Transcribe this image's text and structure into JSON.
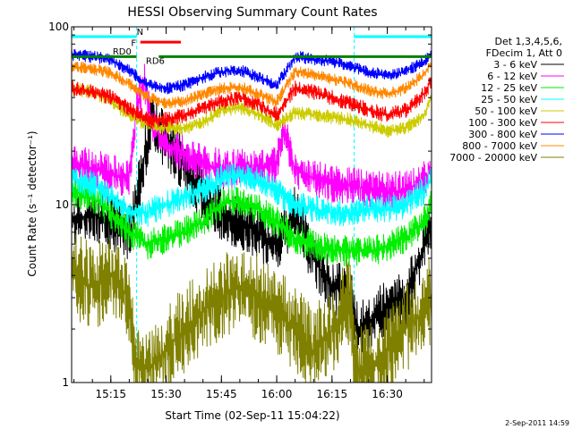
{
  "chart_data": {
    "type": "line",
    "title": "HESSI Observing Summary Count Rates",
    "xlabel": "Start Time (02-Sep-11 15:04:22)",
    "ylabel": "Count Rate (s⁻¹ detector⁻¹)",
    "y_scale": "log",
    "ylim": [
      1,
      100
    ],
    "xlim": [
      "15:04:22",
      "16:42:00"
    ],
    "x_tick_labels": [
      "15:15",
      "15:30",
      "15:45",
      "16:00",
      "16:15",
      "16:30"
    ],
    "y_tick_labels": [
      "1",
      "10",
      "100"
    ],
    "timestamp": "2-Sep-2011 14:59",
    "legend_header": [
      "Det 1,3,4,5,6,",
      "FDecim 1, Att 0"
    ],
    "annotations": [
      "RD0",
      "RD6",
      "N",
      "F"
    ],
    "night_bands": [
      [
        "15:04:22",
        "15:22:00"
      ],
      [
        "16:21:00",
        "16:42:00"
      ]
    ],
    "series": [
      {
        "name": "3 - 6 keV",
        "color": "#000000",
        "x": [
          "15:04",
          "15:10",
          "15:15",
          "15:20",
          "15:22",
          "15:26",
          "15:30",
          "15:35",
          "15:40",
          "15:45",
          "15:50",
          "15:55",
          "16:00",
          "16:05",
          "16:10",
          "16:15",
          "16:20",
          "16:22",
          "16:25",
          "16:30",
          "16:35",
          "16:40",
          "16:42"
        ],
        "values": [
          8,
          9,
          8,
          7,
          11,
          30,
          22,
          17,
          11,
          9,
          8,
          7,
          6,
          9,
          5,
          3.5,
          3,
          2,
          2.2,
          2.6,
          3,
          6,
          8
        ]
      },
      {
        "name": "6 - 12 keV",
        "color": "#ff00ff",
        "x": [
          "15:04",
          "15:10",
          "15:15",
          "15:20",
          "15:22",
          "15:24",
          "15:26",
          "15:30",
          "15:35",
          "15:40",
          "15:45",
          "15:50",
          "15:55",
          "16:00",
          "16:02",
          "16:05",
          "16:10",
          "16:15",
          "16:20",
          "16:25",
          "16:30",
          "16:35",
          "16:40",
          "16:42"
        ],
        "values": [
          17,
          16,
          15,
          14,
          35,
          50,
          30,
          22,
          19,
          17,
          16,
          16,
          16,
          17,
          26,
          16,
          14,
          13,
          13,
          12,
          12,
          12,
          14,
          16
        ]
      },
      {
        "name": "12 - 25 keV",
        "color": "#00ee00",
        "x": [
          "15:04",
          "15:10",
          "15:15",
          "15:20",
          "15:25",
          "15:30",
          "15:35",
          "15:40",
          "15:45",
          "15:50",
          "15:55",
          "16:00",
          "16:05",
          "16:10",
          "16:15",
          "16:20",
          "16:25",
          "16:30",
          "16:35",
          "16:40",
          "16:42"
        ],
        "values": [
          12,
          11,
          9,
          7,
          6,
          6.5,
          7,
          8,
          10,
          10.5,
          9.5,
          8,
          6.5,
          6,
          5.5,
          5.5,
          5.5,
          5.8,
          6.5,
          8,
          10
        ]
      },
      {
        "name": "25 - 50 keV",
        "color": "#00ffff",
        "x": [
          "15:04",
          "15:10",
          "15:15",
          "15:20",
          "15:25",
          "15:30",
          "15:35",
          "15:40",
          "15:45",
          "15:50",
          "15:55",
          "16:00",
          "16:05",
          "16:10",
          "16:15",
          "16:20",
          "16:25",
          "16:30",
          "16:35",
          "16:40",
          "16:42"
        ],
        "values": [
          14,
          13,
          11,
          9,
          9,
          10,
          11,
          12,
          14,
          14.5,
          13.5,
          12,
          10,
          9.5,
          9,
          9,
          9.5,
          9.5,
          10,
          12,
          14
        ]
      },
      {
        "name": "50 - 100 keV",
        "color": "#cccc00",
        "x": [
          "15:04",
          "15:10",
          "15:15",
          "15:20",
          "15:25",
          "15:30",
          "15:35",
          "15:40",
          "15:45",
          "15:50",
          "15:55",
          "16:00",
          "16:05",
          "16:10",
          "16:15",
          "16:20",
          "16:25",
          "16:30",
          "16:35",
          "16:40",
          "16:42"
        ],
        "values": [
          45,
          43,
          38,
          32,
          28,
          27,
          27,
          29,
          34,
          35,
          32,
          28,
          33,
          32,
          31,
          30,
          28,
          26,
          27,
          32,
          40
        ]
      },
      {
        "name": "100 - 300 keV",
        "color": "#ff0000",
        "x": [
          "15:04",
          "15:10",
          "15:15",
          "15:20",
          "15:25",
          "15:30",
          "15:35",
          "15:40",
          "15:45",
          "15:50",
          "15:55",
          "16:00",
          "16:05",
          "16:10",
          "16:15",
          "16:20",
          "16:25",
          "16:30",
          "16:35",
          "16:40",
          "16:42"
        ],
        "values": [
          45,
          43,
          40,
          35,
          30,
          30,
          32,
          35,
          38,
          40,
          37,
          32,
          45,
          43,
          40,
          37,
          34,
          32,
          34,
          42,
          50
        ]
      },
      {
        "name": "300 - 800 keV",
        "color": "#0000ff",
        "x": [
          "15:04",
          "15:10",
          "15:15",
          "15:20",
          "15:25",
          "15:30",
          "15:35",
          "15:40",
          "15:45",
          "15:50",
          "15:55",
          "16:00",
          "16:05",
          "16:10",
          "16:15",
          "16:20",
          "16:25",
          "16:30",
          "16:35",
          "16:40",
          "16:42"
        ],
        "values": [
          70,
          68,
          65,
          57,
          47,
          45,
          47,
          52,
          56,
          57,
          52,
          47,
          68,
          66,
          64,
          60,
          56,
          53,
          56,
          64,
          72
        ]
      },
      {
        "name": "800 - 7000 keV",
        "color": "#ff8800",
        "x": [
          "15:04",
          "15:10",
          "15:15",
          "15:20",
          "15:25",
          "15:30",
          "15:35",
          "15:40",
          "15:45",
          "15:50",
          "15:55",
          "16:00",
          "16:05",
          "16:10",
          "16:15",
          "16:20",
          "16:25",
          "16:30",
          "16:35",
          "16:40",
          "16:42"
        ],
        "values": [
          60,
          58,
          55,
          48,
          40,
          37,
          38,
          42,
          45,
          46,
          42,
          38,
          56,
          54,
          51,
          48,
          44,
          42,
          45,
          54,
          62
        ]
      },
      {
        "name": "7000 - 20000 keV",
        "color": "#808000",
        "x": [
          "15:04",
          "15:10",
          "15:15",
          "15:20",
          "15:22",
          "15:25",
          "15:30",
          "15:35",
          "15:40",
          "15:45",
          "15:50",
          "15:55",
          "16:00",
          "16:05",
          "16:10",
          "16:15",
          "16:20",
          "16:21",
          "16:25",
          "16:30",
          "16:35",
          "16:40",
          "16:42"
        ],
        "values": [
          4,
          3.5,
          4,
          3,
          1.3,
          1.2,
          1.5,
          2,
          2.5,
          3,
          3.5,
          3,
          2.5,
          2,
          1.5,
          2,
          3,
          1.2,
          1.2,
          1.5,
          2,
          2.5,
          3
        ]
      }
    ],
    "flag_bars": [
      {
        "label": "RD0",
        "color": "#008000",
        "x": [
          [
            "15:04:22",
            "15:22:00"
          ],
          [
            "15:28:00",
            "16:42:00"
          ]
        ],
        "value": 68
      },
      {
        "label": "N",
        "color": "#00ffff",
        "x": [
          [
            "15:04:22",
            "15:22:00"
          ],
          [
            "16:21:00",
            "16:42:00"
          ]
        ],
        "value": 88
      },
      {
        "label": "F",
        "color": "#ff0000",
        "x": [
          [
            "15:23:00",
            "15:34:00"
          ]
        ],
        "value": 82
      }
    ],
    "grid": false,
    "legend_position": "right"
  }
}
